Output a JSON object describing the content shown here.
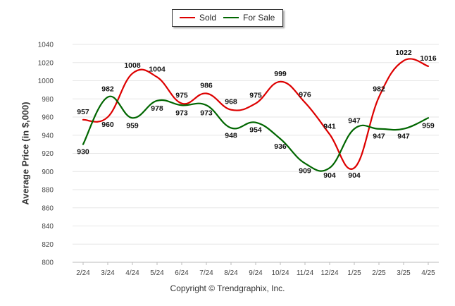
{
  "chart_data": {
    "type": "line",
    "categories": [
      "2/24",
      "3/24",
      "4/24",
      "5/24",
      "6/24",
      "7/24",
      "8/24",
      "9/24",
      "10/24",
      "11/24",
      "12/24",
      "1/25",
      "2/25",
      "3/25",
      "4/25"
    ],
    "series": [
      {
        "name": "Sold",
        "color": "#dd0000",
        "values": [
          957,
          960,
          1008,
          1004,
          975,
          986,
          968,
          975,
          999,
          976,
          941,
          904,
          982,
          1022,
          1016
        ]
      },
      {
        "name": "For Sale",
        "color": "#006600",
        "values": [
          930,
          982,
          959,
          978,
          973,
          973,
          948,
          954,
          936,
          909,
          904,
          947,
          947,
          947,
          959
        ]
      }
    ],
    "ylabel": "Average Price (in $,000)",
    "ylim": [
      800,
      1040
    ],
    "yticks": [
      800,
      820,
      840,
      860,
      880,
      900,
      920,
      940,
      960,
      980,
      1000,
      1020,
      1040
    ],
    "grid": true,
    "legend_position": "top-center"
  },
  "legend": {
    "sold": "Sold",
    "for_sale": "For Sale"
  },
  "footer": {
    "copyright": "Copyright © Trendgraphix, Inc."
  }
}
